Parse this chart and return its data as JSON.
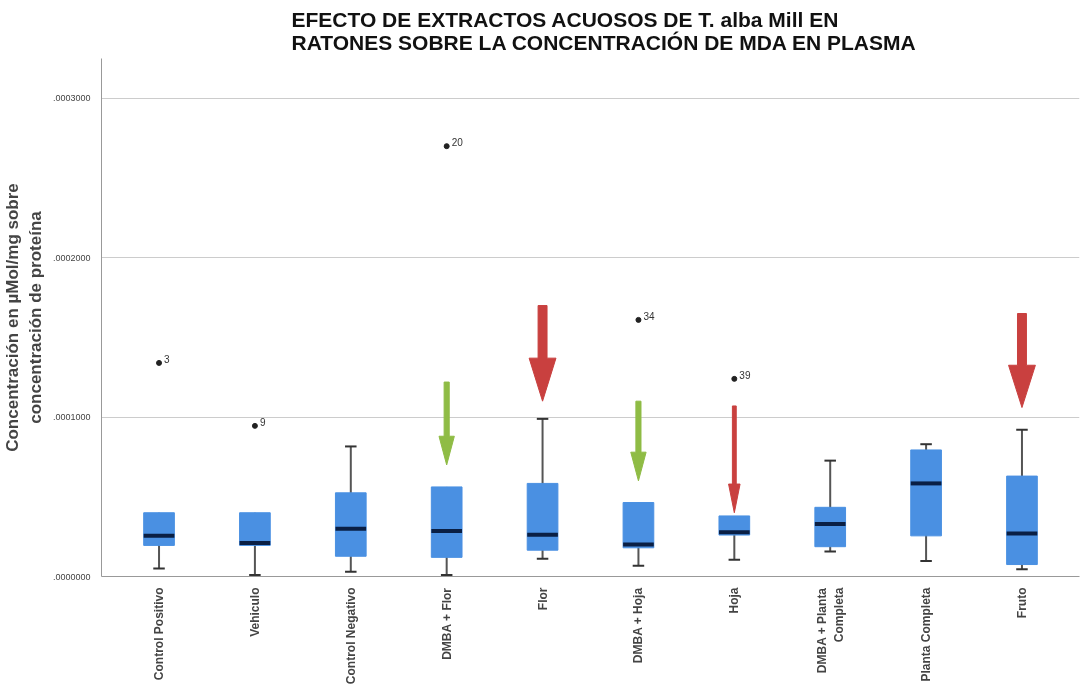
{
  "chart_data": {
    "type": "box",
    "title": "EFECTO DE EXTRACTOS ACUOSOS DE T. alba Mill EN RATONES SOBRE LA CONCENTRACIÓN DE MDA EN PLASMA",
    "ylabel": "Concentración en µMol/mg sobre concentración de proteína",
    "categories": [
      "Control Positivo",
      "Vehiculo",
      "Control Negativo",
      "DMBA + Flor",
      "Flor",
      "DMBA + Hoja",
      "Hoja",
      "DMBA + Planta Completa",
      "Planta Completa",
      "Fruto"
    ],
    "color": "#4a90e2",
    "boxes": [
      {
        "low": 5e-06,
        "q1": 1.95e-05,
        "median": 2.55e-05,
        "q3": 4e-05,
        "high": 4e-05,
        "outliers": [
          0.000134
        ]
      },
      {
        "low": 1e-06,
        "q1": 1.95e-05,
        "median": 2.1e-05,
        "q3": 4e-05,
        "high": 4e-05,
        "outliers": [
          9.45e-05
        ]
      },
      {
        "low": 3e-06,
        "q1": 1.27e-05,
        "median": 3e-05,
        "q3": 5.25e-05,
        "high": 8.16e-05
      },
      {
        "low": 1e-06,
        "q1": 1.2e-05,
        "median": 2.85e-05,
        "q3": 5.62e-05,
        "high": 5.62e-05,
        "outliers": [
          0.00027
        ]
      },
      {
        "low": 1.12e-05,
        "q1": 1.65e-05,
        "median": 2.62e-05,
        "q3": 5.84e-05,
        "high": 9.89e-05
      },
      {
        "low": 6.7e-06,
        "q1": 1.8e-05,
        "median": 2e-05,
        "q3": 4.64e-05,
        "high": 4.64e-05,
        "outliers": [
          0.000161
        ]
      },
      {
        "low": 1.05e-05,
        "q1": 2.6e-05,
        "median": 2.77e-05,
        "q3": 3.8e-05,
        "high": 3.8e-05,
        "outliers": [
          0.000124
        ]
      },
      {
        "low": 1.57e-05,
        "q1": 1.87e-05,
        "median": 3.3e-05,
        "q3": 4.34e-05,
        "high": 7.27e-05
      },
      {
        "low": 9.7e-06,
        "q1": 2.55e-05,
        "median": 5.84e-05,
        "q3": 7.94e-05,
        "high": 8.3e-05
      },
      {
        "low": 4.5e-06,
        "q1": 7.5e-06,
        "median": 2.7e-05,
        "q3": 6.3e-05,
        "high": 9.2e-05
      }
    ],
    "ylim": [
      0,
      0.000325
    ],
    "yticks": [
      {
        "value": 0,
        "label": ".0000000"
      },
      {
        "value": 0.0001,
        "label": ".0001000"
      },
      {
        "value": 0.0002,
        "label": ".0002000"
      },
      {
        "value": 0.0003,
        "label": ".0003000"
      }
    ],
    "grid": "y",
    "annotations": [
      "3",
      "9",
      "20",
      "34",
      "39"
    ]
  }
}
